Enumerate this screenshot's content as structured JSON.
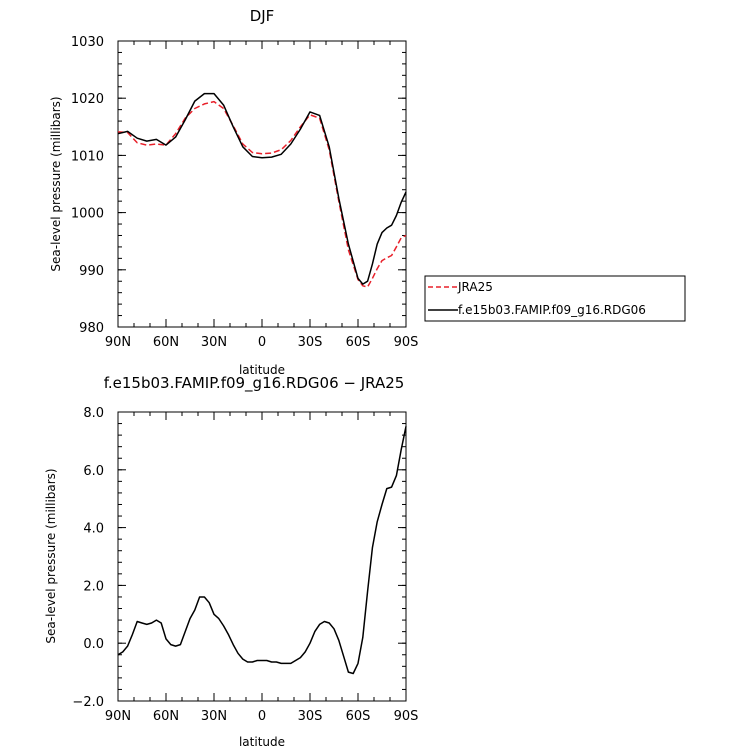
{
  "chart_data": [
    {
      "type": "line",
      "title": "DJF",
      "xlabel": "latitude",
      "ylabel": "Sea-level pressure (millibars)",
      "xlim": [
        90,
        -90
      ],
      "ylim": [
        980,
        1030
      ],
      "xticks": [
        90,
        60,
        30,
        0,
        -30,
        -60,
        -90
      ],
      "xtick_labels": [
        "90N",
        "60N",
        "30N",
        "0",
        "30S",
        "60S",
        "90S"
      ],
      "yticks": [
        980,
        990,
        1000,
        1010,
        1020,
        1030
      ],
      "ytick_labels": [
        "980",
        "990",
        "1000",
        "1010",
        "1020",
        "1030"
      ],
      "legend_position": "right",
      "series": [
        {
          "name": "JRA25",
          "color": "#e8202a",
          "dash": "dashed",
          "x": [
            90,
            84,
            78,
            72,
            66,
            60,
            54,
            48,
            42,
            36,
            30,
            24,
            18,
            12,
            6,
            0,
            -6,
            -12,
            -18,
            -24,
            -30,
            -36,
            -42,
            -48,
            -54,
            -60,
            -63,
            -66,
            -69,
            -72,
            -75,
            -78,
            -81,
            -84,
            -87,
            -90
          ],
          "y": [
            1014.1,
            1014.0,
            1012.2,
            1011.8,
            1012.0,
            1011.8,
            1013.8,
            1016.5,
            1018.2,
            1019.0,
            1019.4,
            1018.2,
            1015.2,
            1012.0,
            1010.5,
            1010.3,
            1010.4,
            1011.0,
            1012.6,
            1015.0,
            1017.1,
            1016.5,
            1011.0,
            1002.0,
            993.5,
            988.3,
            987.2,
            987.0,
            988.5,
            990.2,
            991.6,
            992.1,
            992.5,
            994.0,
            995.6,
            996.0
          ]
        },
        {
          "name": "f.e15b03.FAMIP.f09_g16.RDG06",
          "color": "#000000",
          "dash": "solid",
          "x": [
            90,
            84,
            78,
            72,
            66,
            60,
            54,
            48,
            42,
            36,
            30,
            24,
            18,
            12,
            6,
            0,
            -6,
            -12,
            -18,
            -24,
            -30,
            -36,
            -42,
            -48,
            -54,
            -60,
            -63,
            -66,
            -69,
            -72,
            -75,
            -78,
            -81,
            -84,
            -87,
            -90
          ],
          "y": [
            1013.8,
            1014.2,
            1013.0,
            1012.5,
            1012.8,
            1011.8,
            1013.2,
            1016.2,
            1019.5,
            1020.8,
            1020.8,
            1018.8,
            1015.0,
            1011.5,
            1009.8,
            1009.6,
            1009.7,
            1010.2,
            1012.0,
            1014.6,
            1017.6,
            1017.0,
            1011.5,
            1002.5,
            994.5,
            988.5,
            987.5,
            988.0,
            991.0,
            994.5,
            996.5,
            997.3,
            997.8,
            999.5,
            1001.8,
            1003.6
          ]
        }
      ]
    },
    {
      "type": "line",
      "title": "f.e15b03.FAMIP.f09_g16.RDG06 − JRA25",
      "xlabel": "latitude",
      "ylabel": "Sea-level pressure (millibars)",
      "xlim": [
        90,
        -90
      ],
      "ylim": [
        -2.0,
        8.0
      ],
      "xticks": [
        90,
        60,
        30,
        0,
        -30,
        -60,
        -90
      ],
      "xtick_labels": [
        "90N",
        "60N",
        "30N",
        "0",
        "30S",
        "60S",
        "90S"
      ],
      "yticks": [
        -2.0,
        0.0,
        2.0,
        4.0,
        6.0,
        8.0
      ],
      "ytick_labels": [
        "−2.0",
        "0.0",
        "2.0",
        "4.0",
        "6.0",
        "8.0"
      ],
      "series": [
        {
          "color": "#000000",
          "dash": "solid",
          "x": [
            90,
            87,
            84,
            81,
            78,
            75,
            72,
            69,
            66,
            63,
            60,
            57,
            54,
            51,
            48,
            45,
            42,
            39,
            36,
            33,
            30,
            27,
            24,
            21,
            18,
            15,
            12,
            9,
            6,
            3,
            0,
            -3,
            -6,
            -9,
            -12,
            -15,
            -18,
            -21,
            -24,
            -27,
            -30,
            -33,
            -36,
            -39,
            -42,
            -45,
            -48,
            -51,
            -54,
            -57,
            -60,
            -63,
            -66,
            -69,
            -72,
            -75,
            -78,
            -81,
            -84,
            -87,
            -90
          ],
          "y": [
            -0.4,
            -0.3,
            -0.1,
            0.3,
            0.75,
            0.7,
            0.65,
            0.7,
            0.8,
            0.7,
            0.15,
            -0.05,
            -0.1,
            -0.05,
            0.4,
            0.85,
            1.15,
            1.6,
            1.6,
            1.4,
            1.0,
            0.85,
            0.6,
            0.3,
            -0.05,
            -0.35,
            -0.55,
            -0.65,
            -0.65,
            -0.6,
            -0.6,
            -0.6,
            -0.65,
            -0.65,
            -0.7,
            -0.7,
            -0.7,
            -0.6,
            -0.5,
            -0.3,
            0.0,
            0.4,
            0.65,
            0.75,
            0.7,
            0.5,
            0.1,
            -0.45,
            -1.0,
            -1.05,
            -0.7,
            0.2,
            1.8,
            3.3,
            4.2,
            4.8,
            5.35,
            5.4,
            5.8,
            6.7,
            7.5
          ]
        }
      ]
    }
  ]
}
